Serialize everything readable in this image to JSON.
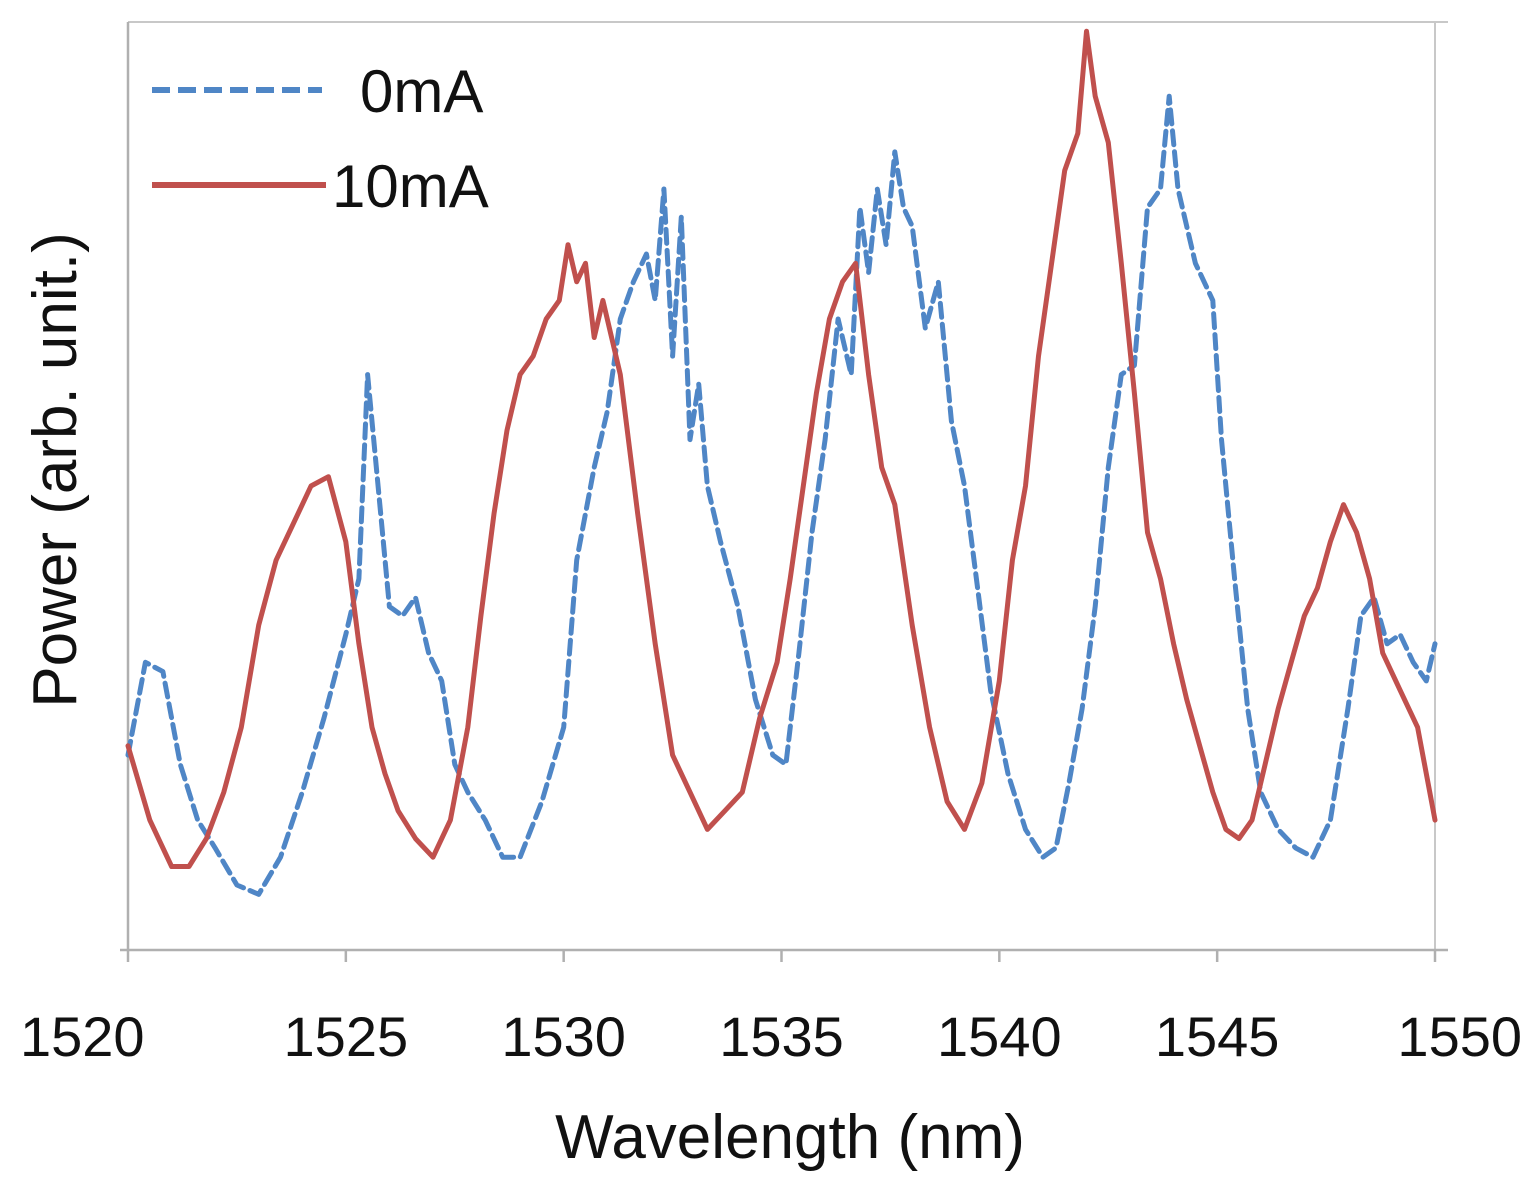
{
  "chart_data": {
    "type": "line",
    "title": "",
    "xlabel": "Wavelength (nm)",
    "ylabel": "Power (arb. unit.)",
    "xlim": [
      1520,
      1550
    ],
    "ylim": [
      0,
      100
    ],
    "x_ticks": [
      1520,
      1525,
      1530,
      1535,
      1540,
      1545,
      1550
    ],
    "y_ticks": [],
    "grid": false,
    "legend_position": "top-left",
    "series": [
      {
        "name": "0mA",
        "style": "dashed",
        "color": "#4f86c6",
        "x": [
          1520,
          1520.4,
          1520.8,
          1521.2,
          1521.6,
          1522,
          1522.5,
          1523,
          1523.5,
          1524,
          1524.5,
          1525,
          1525.3,
          1525.5,
          1525.8,
          1526,
          1526.3,
          1526.6,
          1526.9,
          1527.2,
          1527.5,
          1527.8,
          1528.2,
          1528.6,
          1529,
          1529.5,
          1530,
          1530.3,
          1530.7,
          1531,
          1531.3,
          1531.6,
          1531.9,
          1532.1,
          1532.3,
          1532.5,
          1532.7,
          1532.9,
          1533.1,
          1533.3,
          1533.6,
          1534,
          1534.4,
          1534.8,
          1535.1,
          1535.4,
          1535.7,
          1536,
          1536.3,
          1536.6,
          1536.8,
          1537,
          1537.2,
          1537.4,
          1537.6,
          1537.8,
          1538,
          1538.3,
          1538.6,
          1538.9,
          1539.2,
          1539.5,
          1539.8,
          1540.2,
          1540.6,
          1541,
          1541.3,
          1541.6,
          1541.9,
          1542.2,
          1542.5,
          1542.8,
          1543.1,
          1543.4,
          1543.7,
          1543.9,
          1544.1,
          1544.3,
          1544.5,
          1544.7,
          1544.9,
          1545.1,
          1545.4,
          1545.7,
          1546,
          1546.4,
          1546.8,
          1547.2,
          1547.6,
          1548,
          1548.3,
          1548.6,
          1548.9,
          1549.2,
          1549.5,
          1549.8,
          1550
        ],
        "y": [
          21,
          31,
          30,
          20,
          14,
          11,
          7,
          6,
          10,
          17,
          25,
          34,
          40,
          62,
          47,
          37,
          36,
          38,
          32,
          29,
          20,
          17,
          14,
          10,
          10,
          16,
          24,
          42,
          52,
          58,
          68,
          72,
          75,
          70,
          82,
          64,
          79,
          55,
          61,
          50,
          44,
          37,
          27,
          21,
          20,
          32,
          45,
          55,
          68,
          62,
          80,
          73,
          82,
          76,
          86,
          80,
          78,
          67,
          72,
          57,
          50,
          39,
          28,
          19,
          13,
          10,
          11,
          18,
          26,
          37,
          52,
          62,
          63,
          80,
          82,
          92,
          82,
          78,
          74,
          72,
          70,
          55,
          40,
          26,
          17,
          13,
          11,
          10,
          14,
          26,
          36,
          38,
          33,
          34,
          31,
          29,
          33
        ]
      },
      {
        "name": "10mA",
        "style": "solid",
        "color": "#c0504d",
        "x": [
          1520,
          1520.5,
          1521,
          1521.4,
          1521.8,
          1522.2,
          1522.6,
          1523,
          1523.4,
          1523.8,
          1524.2,
          1524.6,
          1525,
          1525.3,
          1525.6,
          1525.9,
          1526.2,
          1526.6,
          1527,
          1527.4,
          1527.8,
          1528.1,
          1528.4,
          1528.7,
          1529,
          1529.3,
          1529.6,
          1529.9,
          1530.1,
          1530.3,
          1530.5,
          1530.7,
          1530.9,
          1531.3,
          1531.7,
          1532.1,
          1532.5,
          1532.9,
          1533.3,
          1533.7,
          1534.1,
          1534.5,
          1534.9,
          1535.2,
          1535.5,
          1535.8,
          1536.1,
          1536.4,
          1536.7,
          1537,
          1537.3,
          1537.6,
          1538,
          1538.4,
          1538.8,
          1539.2,
          1539.6,
          1540,
          1540.3,
          1540.6,
          1540.9,
          1541.2,
          1541.5,
          1541.8,
          1542,
          1542.2,
          1542.5,
          1542.8,
          1543.1,
          1543.4,
          1543.7,
          1544,
          1544.3,
          1544.6,
          1544.9,
          1545.2,
          1545.5,
          1545.8,
          1546.1,
          1546.4,
          1546.7,
          1547,
          1547.3,
          1547.6,
          1547.9,
          1548.2,
          1548.5,
          1548.8,
          1549.2,
          1549.6,
          1550
        ],
        "y": [
          22,
          14,
          9,
          9,
          12,
          17,
          24,
          35,
          42,
          46,
          50,
          51,
          44,
          33,
          24,
          19,
          15,
          12,
          10,
          14,
          24,
          36,
          47,
          56,
          62,
          64,
          68,
          70,
          76,
          72,
          74,
          66,
          70,
          62,
          47,
          33,
          21,
          17,
          13,
          15,
          17,
          25,
          31,
          40,
          50,
          60,
          68,
          72,
          74,
          62,
          52,
          48,
          35,
          24,
          16,
          13,
          18,
          29,
          42,
          50,
          64,
          74,
          84,
          88,
          99,
          92,
          87,
          74,
          60,
          45,
          40,
          33,
          27,
          22,
          17,
          13,
          12,
          14,
          20,
          26,
          31,
          36,
          39,
          44,
          48,
          45,
          40,
          32,
          28,
          24,
          14
        ]
      }
    ]
  }
}
